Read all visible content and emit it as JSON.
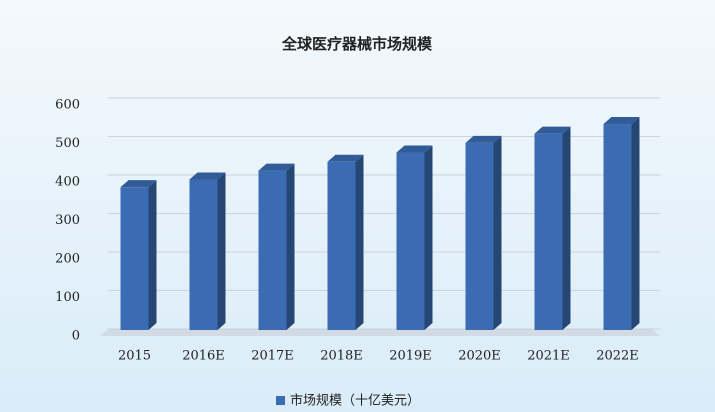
{
  "chart_data": {
    "type": "bar3d",
    "title": "全球医疗器械市场规模",
    "categories": [
      "2015",
      "2016E",
      "2017E",
      "2018E",
      "2019E",
      "2020E",
      "2021E",
      "2022E"
    ],
    "series": [
      {
        "name": "市场规模（十亿美元）",
        "color": "#3b6cb3",
        "values": [
          371,
          391,
          414,
          437,
          461,
          486,
          510,
          535
        ]
      }
    ],
    "ylim": [
      0,
      600
    ],
    "yticks": [
      0,
      100,
      200,
      300,
      400,
      500,
      600
    ],
    "grid": true
  }
}
